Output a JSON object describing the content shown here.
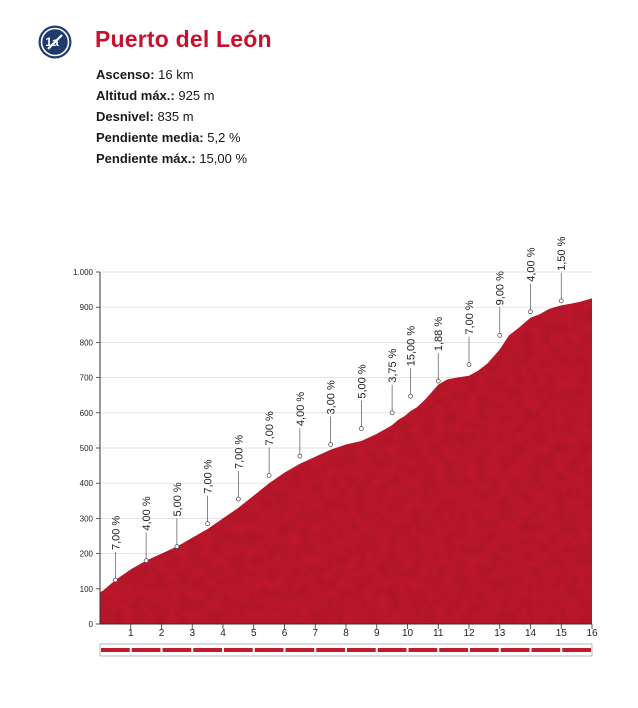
{
  "header": {
    "badge_text": "1a",
    "title": "Puerto del León",
    "brand_color": "#c8102e"
  },
  "stats": [
    {
      "label": "Ascenso:",
      "value": "16 km"
    },
    {
      "label": "Altitud máx.:",
      "value": "925 m"
    },
    {
      "label": "Desnivel:",
      "value": "835 m"
    },
    {
      "label": "Pendiente media:",
      "value": "5,2 %"
    },
    {
      "label": "Pendiente máx.:",
      "value": "15,00 %"
    }
  ],
  "chart_data": {
    "type": "area",
    "fill_color": "#c11b2f",
    "ylim": [
      0,
      1000
    ],
    "xlim": [
      0,
      16
    ],
    "y_ticks": [
      0,
      100,
      200,
      300,
      400,
      500,
      600,
      700,
      800,
      900,
      1000
    ],
    "y_tick_labels": [
      "0",
      "100",
      "200",
      "300",
      "400",
      "500",
      "600",
      "700",
      "800",
      "900",
      "1.000"
    ],
    "x_ticks": [
      1,
      2,
      3,
      4,
      5,
      6,
      7,
      8,
      9,
      10,
      11,
      12,
      13,
      14,
      15,
      16
    ],
    "x_tick_labels": [
      "1",
      "2",
      "3",
      "4",
      "5",
      "6",
      "7",
      "8",
      "9",
      "10",
      "11",
      "12",
      "13",
      "14",
      "15",
      "16"
    ],
    "profile": {
      "x": [
        0,
        0.1,
        0.5,
        1.0,
        1.5,
        2.0,
        2.5,
        3.0,
        3.5,
        4.0,
        4.5,
        5.0,
        5.5,
        6.0,
        6.5,
        7.0,
        7.5,
        8.0,
        8.5,
        9.0,
        9.3,
        9.5,
        9.7,
        9.9,
        10.1,
        10.3,
        10.6,
        11.0,
        11.3,
        11.6,
        12.0,
        12.3,
        12.6,
        13.0,
        13.3,
        13.6,
        14.0,
        14.3,
        14.6,
        15.0,
        15.3,
        15.6,
        16.0
      ],
      "y": [
        90,
        95,
        125,
        155,
        180,
        200,
        220,
        245,
        270,
        300,
        330,
        365,
        400,
        430,
        455,
        475,
        495,
        510,
        520,
        540,
        555,
        565,
        580,
        590,
        605,
        615,
        640,
        680,
        695,
        700,
        705,
        720,
        740,
        780,
        820,
        840,
        870,
        880,
        895,
        905,
        910,
        915,
        925
      ]
    },
    "grade_markers": [
      {
        "x": 0.5,
        "y": 125,
        "label": "7,00 %",
        "color": "#222222"
      },
      {
        "x": 1.5,
        "y": 180,
        "label": "4,00 %",
        "color": "#222222"
      },
      {
        "x": 2.5,
        "y": 220,
        "label": "5,00 %",
        "color": "#222222"
      },
      {
        "x": 3.5,
        "y": 285,
        "label": "7,00 %",
        "color": "#222222"
      },
      {
        "x": 4.5,
        "y": 355,
        "label": "7,00 %",
        "color": "#222222"
      },
      {
        "x": 5.5,
        "y": 422,
        "label": "7,00 %",
        "color": "#222222"
      },
      {
        "x": 6.5,
        "y": 477,
        "label": "4,00 %",
        "color": "#222222"
      },
      {
        "x": 7.5,
        "y": 510,
        "label": "3,00 %",
        "color": "#222222"
      },
      {
        "x": 8.5,
        "y": 555,
        "label": "5,00 %",
        "color": "#222222"
      },
      {
        "x": 9.5,
        "y": 600,
        "label": "3,75 %",
        "color": "#222222"
      },
      {
        "x": 10.1,
        "y": 647,
        "label": "15,00 %",
        "color": "#c8102e"
      },
      {
        "x": 11.0,
        "y": 690,
        "label": "1,88 %",
        "color": "#222222"
      },
      {
        "x": 12.0,
        "y": 737,
        "label": "7,00 %",
        "color": "#222222"
      },
      {
        "x": 13.0,
        "y": 820,
        "label": "9,00 %",
        "color": "#222222"
      },
      {
        "x": 14.0,
        "y": 887,
        "label": "4,00 %",
        "color": "#222222"
      },
      {
        "x": 15.0,
        "y": 918,
        "label": "1,50 %",
        "color": "#222222"
      }
    ]
  }
}
